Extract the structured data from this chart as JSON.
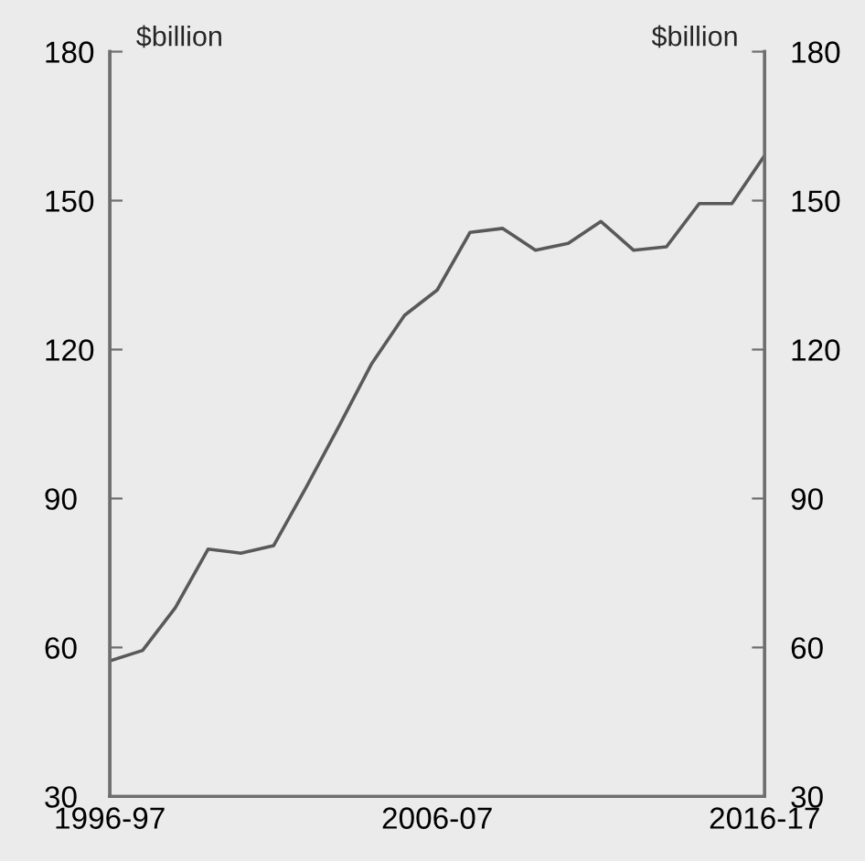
{
  "chart_data": {
    "type": "line",
    "ylabel": "$billion",
    "y2label": "$billion",
    "categories": [
      "1996-97",
      null,
      null,
      null,
      null,
      null,
      null,
      null,
      null,
      null,
      "2006-07",
      null,
      null,
      null,
      null,
      null,
      null,
      null,
      null,
      null,
      "2016-17"
    ],
    "series": [
      {
        "color": "#595959",
        "values": [
          57.3,
          59.4,
          68.0,
          79.8,
          79.0,
          80.5,
          92.3,
          104.6,
          117.2,
          126.9,
          132.0,
          143.6,
          144.4,
          140.0,
          141.4,
          145.8,
          140.0,
          140.7,
          149.4,
          149.4,
          159.1
        ]
      }
    ],
    "ylim": [
      30,
      180
    ],
    "yticks": [
      30,
      60,
      90,
      120,
      150,
      180
    ],
    "y2lim": [
      30,
      180
    ],
    "y2ticks": [
      30,
      60,
      90,
      120,
      150,
      180
    ],
    "line_style": "solid",
    "marker": "none"
  }
}
